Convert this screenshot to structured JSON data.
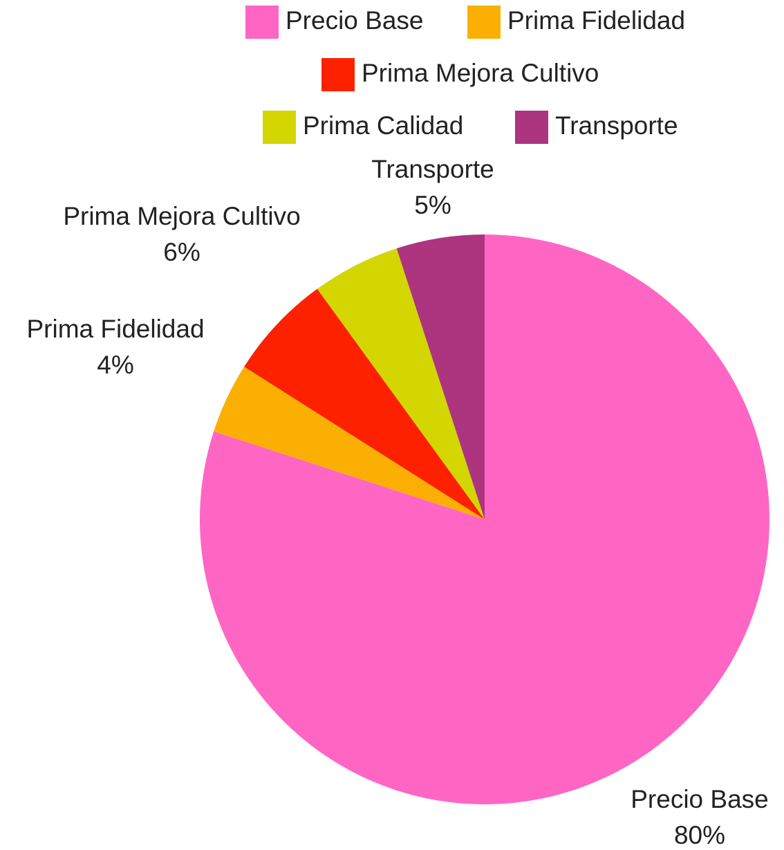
{
  "chart_data": {
    "type": "pie",
    "categories": [
      "Precio Base",
      "Prima Fidelidad",
      "Prima Mejora Cultivo",
      "Prima Calidad",
      "Transporte"
    ],
    "values": [
      80,
      4,
      6,
      5,
      5
    ],
    "value_labels": [
      "80%",
      "4%",
      "6%",
      null,
      "5%"
    ],
    "colors": [
      "#ff66c4",
      "#fcaf03",
      "#fd2100",
      "#d3d600",
      "#ad347f"
    ],
    "legend": "top"
  }
}
